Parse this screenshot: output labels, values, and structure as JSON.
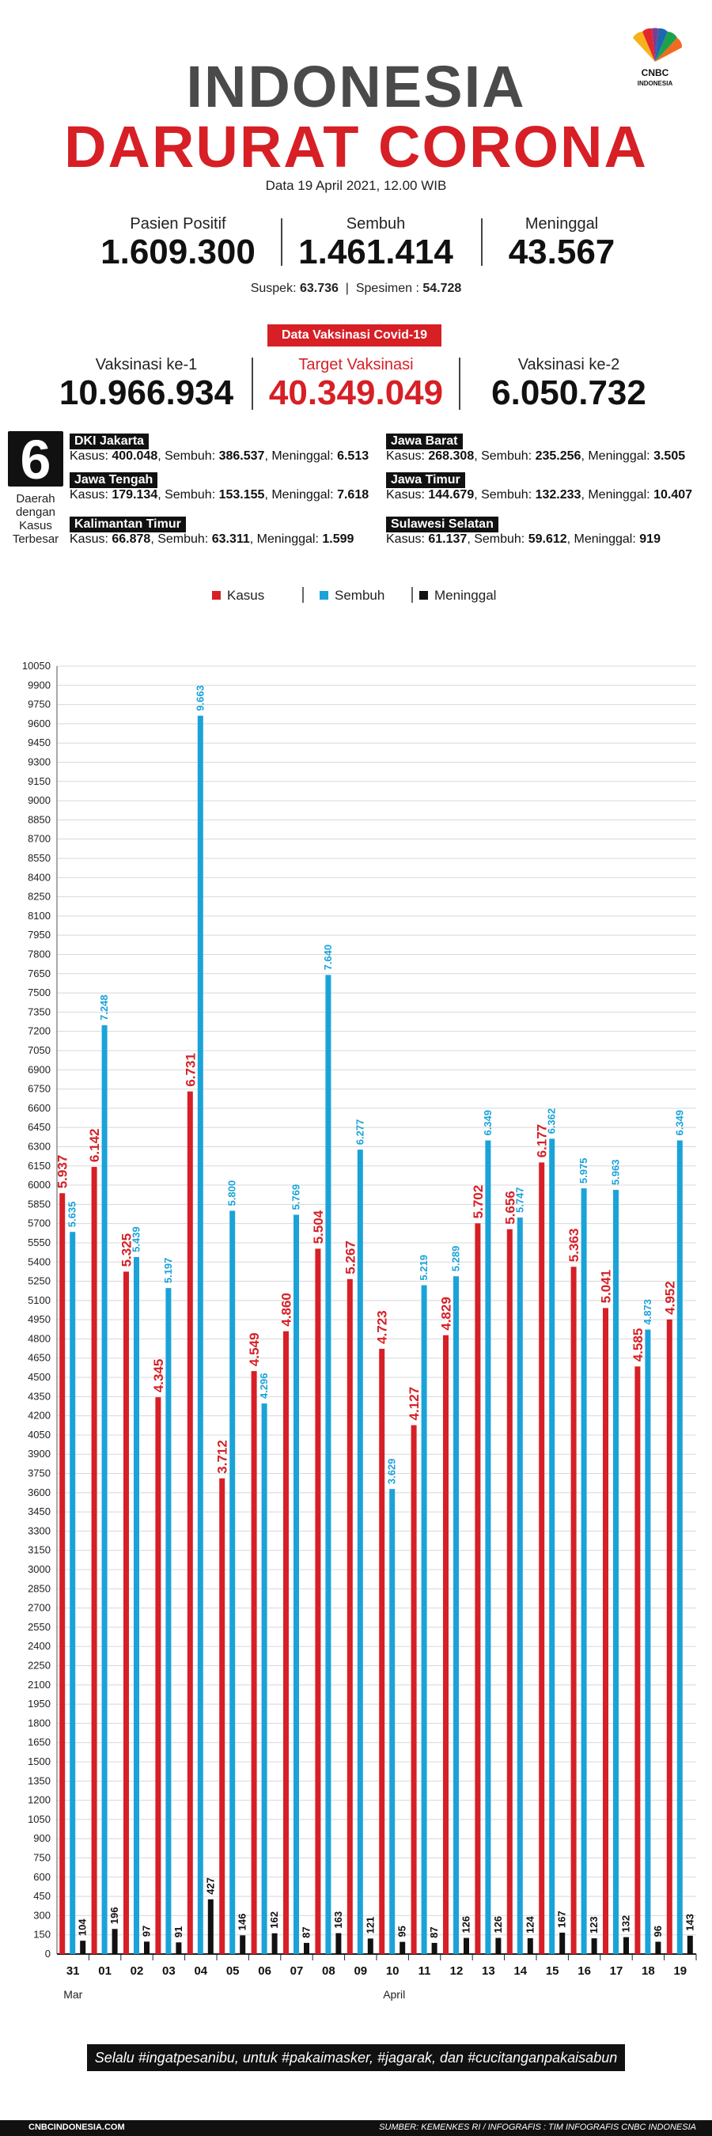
{
  "header": {
    "title_line1": "INDONESIA",
    "title_line2": "DARURAT CORONA",
    "date": "Data 19 April 2021, 12.00 WIB",
    "logo_text1": "CNBC",
    "logo_text2": "INDONESIA"
  },
  "stats": {
    "positif_label": "Pasien Positif",
    "positif_value": "1.609.300",
    "sembuh_label": "Sembuh",
    "sembuh_value": "1.461.414",
    "meninggal_label": "Meninggal",
    "meninggal_value": "43.567",
    "suspek_label": "Suspek:",
    "suspek_value": "63.736",
    "spesimen_label": "Spesimen :",
    "spesimen_value": "54.728"
  },
  "vaksin": {
    "badge": "Data Vaksinasi Covid-19",
    "ke1_label": "Vaksinasi ke-1",
    "ke1_value": "10.966.934",
    "target_label": "Target Vaksinasi",
    "target_value": "40.349.049",
    "ke2_label": "Vaksinasi ke-2",
    "ke2_value": "6.050.732"
  },
  "daerah": {
    "count": "6",
    "caption": "Daerah dengan Kasus Terbesar",
    "provinces": [
      {
        "name": "DKI Jakarta",
        "kasus": "400.048",
        "sembuh": "386.537",
        "meninggal": "6.513"
      },
      {
        "name": "Jawa Barat",
        "kasus": "268.308",
        "sembuh": "235.256",
        "meninggal": "3.505"
      },
      {
        "name": "Jawa Tengah",
        "kasus": "179.134",
        "sembuh": "153.155",
        "meninggal": "7.618"
      },
      {
        "name": "Jawa Timur",
        "kasus": "144.679",
        "sembuh": "132.233",
        "meninggal": "10.407"
      },
      {
        "name": "Kalimantan Timur",
        "kasus": "66.878",
        "sembuh": "63.311",
        "meninggal": "1.599"
      },
      {
        "name": "Sulawesi Selatan",
        "kasus": "61.137",
        "sembuh": "59.612",
        "meninggal": "919"
      }
    ],
    "kasus_label": "Kasus:",
    "sembuh_label": "Sembuh:",
    "meninggal_label": "Meninggal:"
  },
  "colors": {
    "kasus": "#d71f26",
    "sembuh": "#1aa3d9",
    "meninggal": "#111111"
  },
  "chart_data": {
    "type": "bar",
    "categories": [
      "31",
      "01",
      "02",
      "03",
      "04",
      "05",
      "06",
      "07",
      "08",
      "09",
      "10",
      "11",
      "12",
      "13",
      "14",
      "15",
      "16",
      "17",
      "18",
      "19"
    ],
    "month_labels": [
      {
        "label": "Mar",
        "at": "31"
      },
      {
        "label": "April",
        "at": "10"
      }
    ],
    "series": [
      {
        "name": "Kasus",
        "values": [
          5937,
          6142,
          5325,
          4345,
          6731,
          3712,
          4549,
          4860,
          5504,
          5267,
          4723,
          4127,
          4829,
          5702,
          5656,
          6177,
          5363,
          5041,
          4585,
          4952
        ],
        "labels": [
          "5.937",
          "6.142",
          "5.325",
          "4.345",
          "6.731",
          "3.712",
          "4.549",
          "4.860",
          "5.504",
          "5.267",
          "4.723",
          "4.127",
          "4.829",
          "5.702",
          "5.656",
          "6.177",
          "5.363",
          "5.041",
          "4.585",
          "4.952"
        ]
      },
      {
        "name": "Sembuh",
        "values": [
          5635,
          7248,
          5439,
          5197,
          9663,
          5800,
          4296,
          5769,
          7640,
          6277,
          3629,
          5219,
          5289,
          6349,
          5747,
          6362,
          5975,
          5963,
          4873,
          6349
        ],
        "labels": [
          "5.635",
          "7.248",
          "5.439",
          "5.197",
          "9.663",
          "5.800",
          "4.296",
          "5.769",
          "7.640",
          "6.277",
          "3.629",
          "5.219",
          "5.289",
          "6.349",
          "5.747",
          "6.362",
          "5.975",
          "5.963",
          "4.873",
          "6.349"
        ]
      },
      {
        "name": "Meninggal",
        "values": [
          104,
          196,
          97,
          91,
          427,
          146,
          162,
          87,
          163,
          121,
          95,
          87,
          126,
          126,
          124,
          167,
          123,
          132,
          96,
          143
        ],
        "labels": [
          "104",
          "196",
          "97",
          "91",
          "427",
          "146",
          "162",
          "87",
          "163",
          "121",
          "95",
          "87",
          "126",
          "126",
          "124",
          "167",
          "123",
          "132",
          "96",
          "143"
        ]
      }
    ],
    "ylim": [
      0,
      10050
    ],
    "ytick_step": 150,
    "legend_position": "top"
  },
  "footer": {
    "slogan": "Selalu #ingatpesanibu, untuk #pakaimasker, #jagarak, dan #cucitanganpakaisabun",
    "site": "CNBCINDONESIA.COM",
    "source": "SUMBER: KEMENKES RI / INFOGRAFIS : TIM INFOGRAFIS CNBC INDONESIA"
  }
}
